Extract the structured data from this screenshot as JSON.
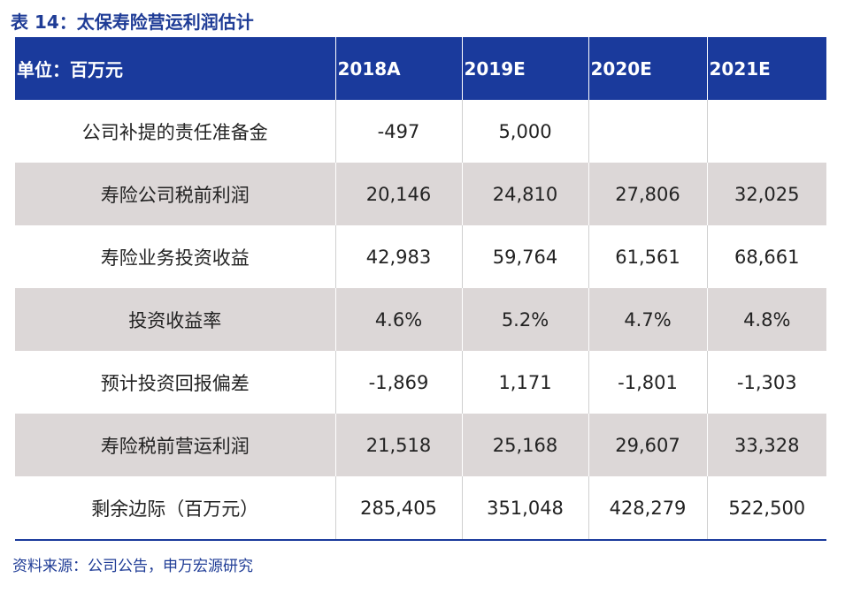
{
  "title": "表 14：太保寿险营运利润估计",
  "table": {
    "headers": [
      "单位：百万元",
      "2018A",
      "2019E",
      "2020E",
      "2021E"
    ],
    "rows": [
      [
        "公司补提的责任准备金",
        "-497",
        "5,000",
        "",
        ""
      ],
      [
        "寿险公司税前利润",
        "20,146",
        "24,810",
        "27,806",
        "32,025"
      ],
      [
        "寿险业务投资收益",
        "42,983",
        "59,764",
        "61,561",
        "68,661"
      ],
      [
        "投资收益率",
        "4.6%",
        "5.2%",
        "4.7%",
        "4.8%"
      ],
      [
        "预计投资回报偏差",
        "-1,869",
        "1,171",
        "-1,801",
        "-1,303"
      ],
      [
        "寿险税前营运利润",
        "21,518",
        "25,168",
        "29,607",
        "33,328"
      ],
      [
        "剩余边际（百万元）",
        "285,405",
        "351,048",
        "428,279",
        "522,500"
      ]
    ]
  },
  "source": "资料来源：公司公告，申万宏源研究",
  "colors": {
    "header_bg": "#1a3a9c",
    "title": "#1f3c96",
    "stripe": "#dcd7d7"
  }
}
